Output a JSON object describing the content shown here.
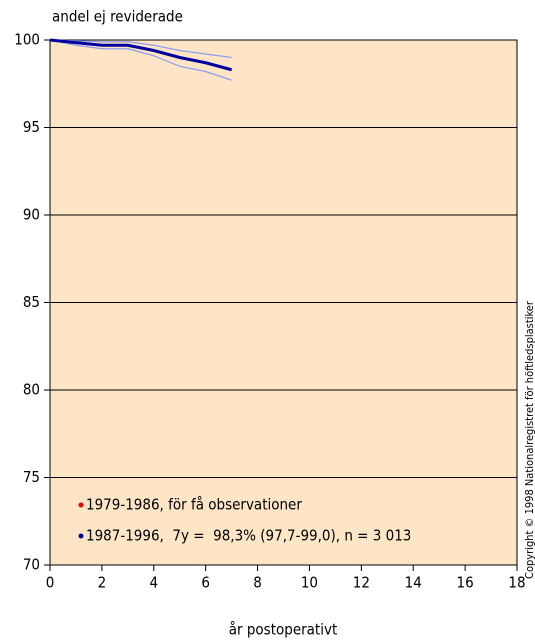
{
  "chart_data": {
    "type": "line",
    "y_label": "andel ej reviderade",
    "x_label": "år postoperativt",
    "copyright": "Copyright © 1998 Nationalregistret för höftledsplastiker",
    "x": [
      0,
      1,
      2,
      3,
      4,
      5,
      6,
      7
    ],
    "series": [
      {
        "name": "1979-1986, för få observationer",
        "color": "#e8000b",
        "values": [
          null,
          null,
          null,
          null,
          null,
          null,
          null,
          null
        ]
      },
      {
        "name": "1987-1996,  7y =  98,3% (97,7-99,0), n = 3 013",
        "color": "#00009e",
        "values": [
          100,
          99.85,
          99.7,
          99.7,
          99.4,
          99.0,
          98.7,
          98.3
        ],
        "upper": [
          100,
          99.95,
          99.9,
          99.9,
          99.7,
          99.4,
          99.2,
          99.0
        ],
        "lower": [
          100,
          99.7,
          99.5,
          99.5,
          99.1,
          98.5,
          98.2,
          97.7
        ],
        "band_color": "#8f9cf0"
      }
    ],
    "xlim": [
      0,
      18
    ],
    "xticks": [
      0,
      2,
      4,
      6,
      8,
      10,
      12,
      14,
      16,
      18
    ],
    "ylim": [
      70,
      100
    ],
    "yticks": [
      70,
      75,
      80,
      85,
      90,
      95,
      100
    ],
    "grid": true,
    "background": "#fde5c6"
  }
}
